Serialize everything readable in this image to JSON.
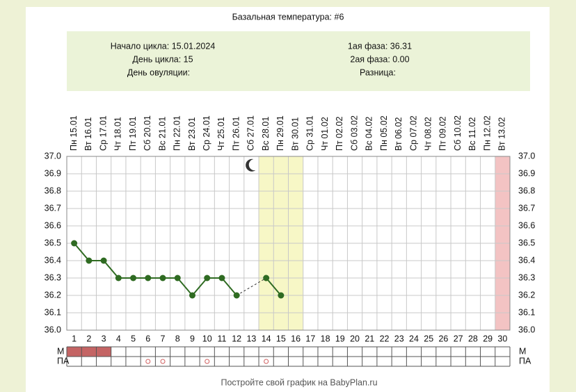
{
  "chart_data": {
    "type": "line",
    "title": "Базальная температура: #6",
    "info": {
      "cycle_start": "Начало цикла: 15.01.2024",
      "cycle_day": "День цикла: 15",
      "ovulation_day": "День овуляции:",
      "phase1": "1ая фаза: 36.31",
      "phase2": "2ая фаза: 0.00",
      "difference": "Разница:"
    },
    "categories": [
      "Пн 15.01",
      "Вт 16.01",
      "Ср 17.01",
      "Чт 18.01",
      "Пт 19.01",
      "Сб 20.01",
      "Вс 21.01",
      "Пн 22.01",
      "Вт 23.01",
      "Ср 24.01",
      "Чт 25.01",
      "Пт 26.01",
      "Сб 27.01",
      "Вс 28.01",
      "Пн 29.01",
      "Вт 30.01",
      "Ср 31.01",
      "Чт 01.02",
      "Пт 02.02",
      "Сб 03.02",
      "Вс 04.02",
      "Пн 05.02",
      "Вт 06.02",
      "Ср 07.02",
      "Чт 08.02",
      "Пт 09.02",
      "Сб 10.02",
      "Вс 11.02",
      "Пн 12.02",
      "Вт 13.02"
    ],
    "xticks": [
      1,
      2,
      3,
      4,
      5,
      6,
      7,
      8,
      9,
      10,
      11,
      12,
      13,
      14,
      15,
      16,
      17,
      18,
      19,
      20,
      21,
      22,
      23,
      24,
      25,
      26,
      27,
      28,
      29,
      30
    ],
    "values": [
      36.5,
      36.4,
      36.4,
      36.3,
      36.3,
      36.3,
      36.3,
      36.3,
      36.2,
      36.3,
      36.3,
      36.2,
      null,
      36.3,
      36.2,
      null,
      null,
      null,
      null,
      null,
      null,
      null,
      null,
      null,
      null,
      null,
      null,
      null,
      null,
      null
    ],
    "color": "#2f6b22",
    "ylim": [
      36.0,
      37.0
    ],
    "yticks": [
      {
        "value": 36.0,
        "label": "36.0"
      },
      36.1,
      36.2,
      36.3,
      36.4,
      36.5,
      36.6,
      36.7,
      36.8,
      36.9,
      {
        "value": 37.0,
        "label": "37.0"
      }
    ],
    "grid": true,
    "highlight_days": [
      14,
      15,
      16
    ],
    "highlight_color": "#f7f7c6",
    "period_forecast_days": [
      30
    ],
    "period_forecast_color": "#f3c3c3",
    "moon_day": 13,
    "m_row": {
      "label": "М",
      "days": [
        1,
        2,
        3
      ],
      "color": "#c46464"
    },
    "pa_row": {
      "label": "ПА",
      "days": [
        6,
        7,
        10,
        14
      ],
      "color": "#d06060"
    },
    "footer": "Постройте свой график на BabyPlan.ru"
  }
}
